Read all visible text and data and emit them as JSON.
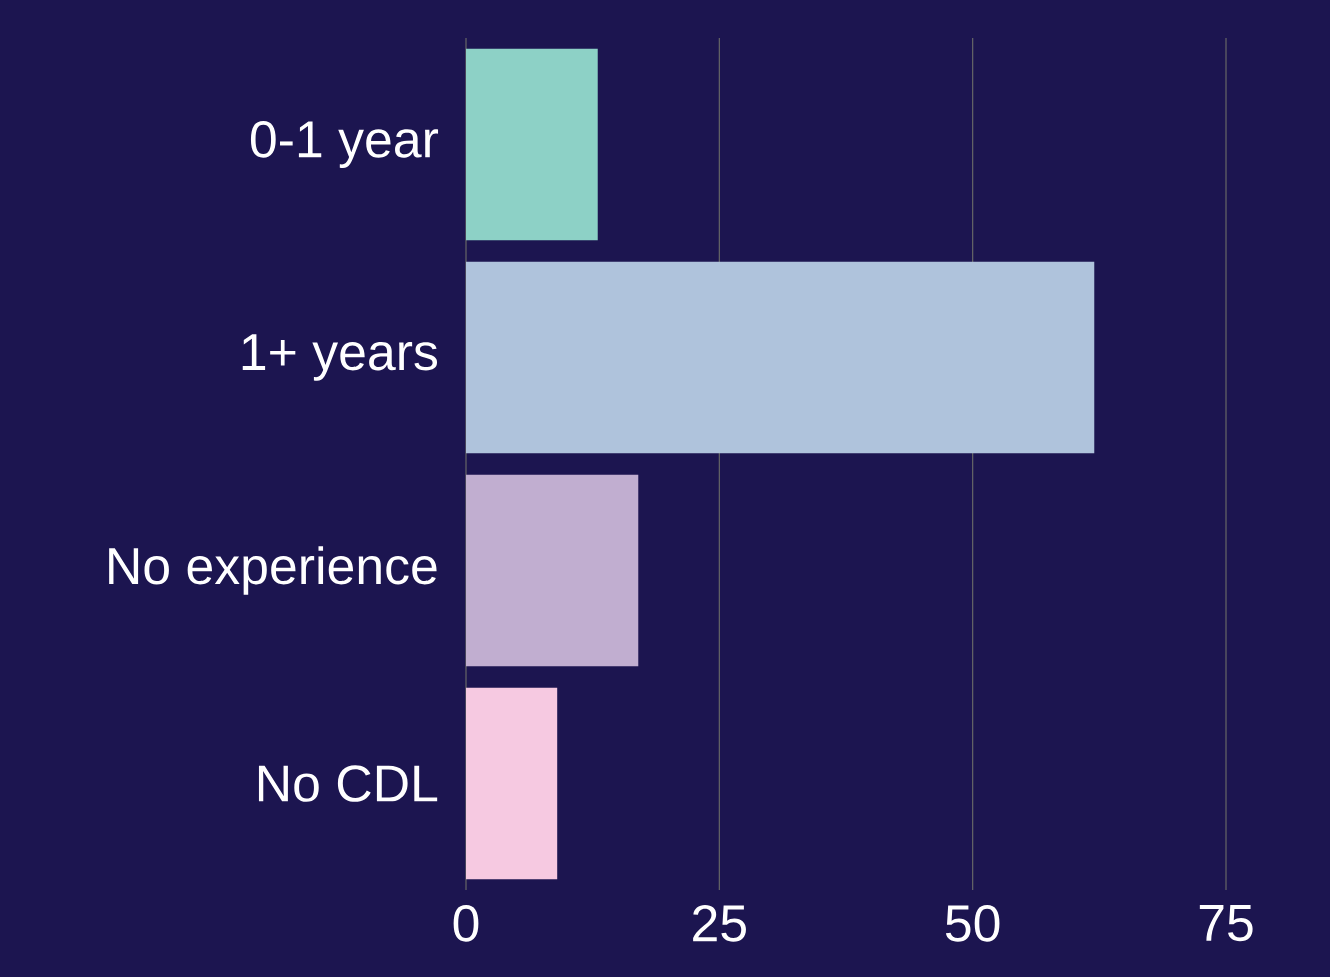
{
  "chart_data": {
    "type": "bar",
    "orientation": "horizontal",
    "categories": [
      "0-1 year",
      "1+ years",
      "No experience",
      "No CDL"
    ],
    "values": [
      13,
      62,
      17,
      9
    ],
    "colors": [
      "#8dd1c6",
      "#afc3dc",
      "#c1aed0",
      "#f6c9e1"
    ],
    "xlim": [
      0,
      75
    ],
    "xticks": [
      0,
      25,
      50,
      75
    ],
    "grid": "x"
  }
}
